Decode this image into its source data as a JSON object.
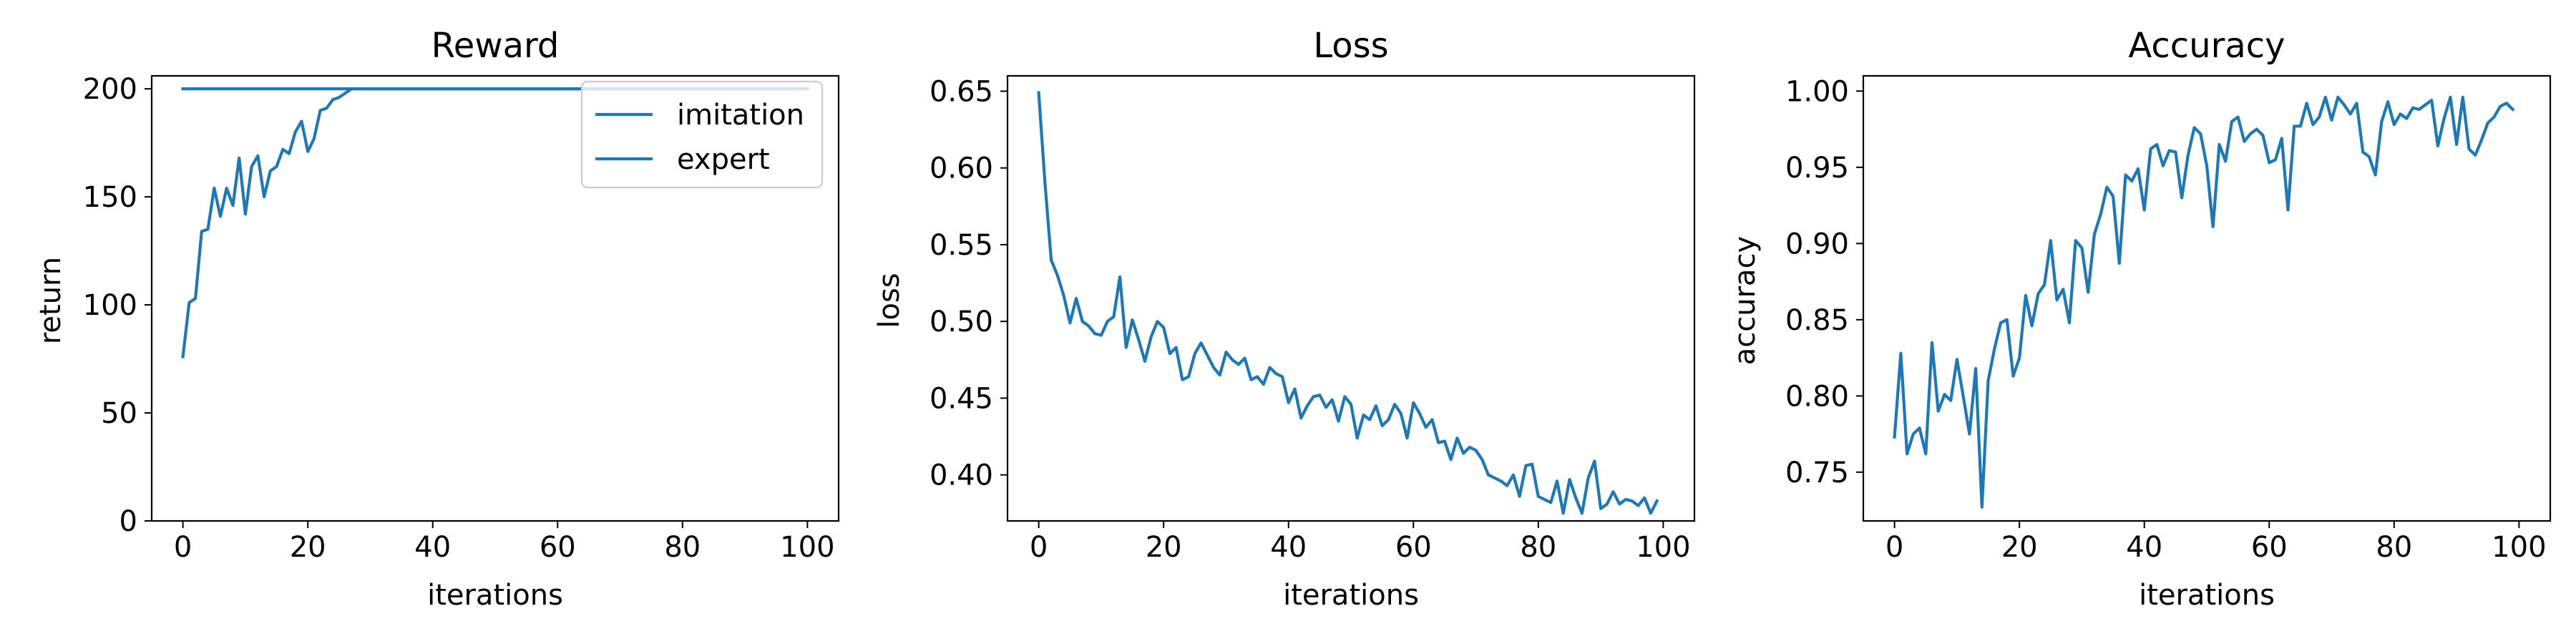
{
  "colors": {
    "line": "#1f77b4",
    "axes": "#000000",
    "legend_border": "#cccccc"
  },
  "chart_data": [
    {
      "type": "line",
      "title": "Reward",
      "xlabel": "iterations",
      "ylabel": "return",
      "xlim": [
        -5,
        105
      ],
      "ylim": [
        0,
        206
      ],
      "xticks": [
        0,
        20,
        40,
        60,
        80,
        100
      ],
      "xtick_labels": [
        "0",
        "20",
        "40",
        "60",
        "80",
        "100"
      ],
      "yticks": [
        0,
        50,
        100,
        150,
        200
      ],
      "ytick_labels": [
        "0",
        "50",
        "100",
        "150",
        "200"
      ],
      "legend": {
        "position": "top-right",
        "entries": [
          "imitation",
          "expert"
        ]
      },
      "grid": false,
      "series": [
        {
          "name": "imitation",
          "x": [
            0,
            1,
            2,
            3,
            4,
            5,
            6,
            7,
            8,
            9,
            10,
            11,
            12,
            13,
            14,
            15,
            16,
            17,
            18,
            19,
            20,
            21,
            22,
            23,
            24,
            25,
            26,
            27,
            28,
            30,
            40,
            50,
            60,
            70,
            80,
            90,
            100
          ],
          "values": [
            76,
            101,
            103,
            134,
            135,
            154,
            141,
            154,
            146,
            168,
            142,
            164,
            169,
            150,
            162,
            164,
            172,
            170,
            180,
            185,
            171,
            177,
            190,
            191,
            195,
            196,
            198,
            200,
            200,
            200,
            200,
            200,
            200,
            200,
            200,
            200,
            200
          ]
        },
        {
          "name": "expert",
          "x": [
            0,
            100
          ],
          "values": [
            200,
            200
          ]
        }
      ]
    },
    {
      "type": "line",
      "title": "Loss",
      "xlabel": "iterations",
      "ylabel": "loss",
      "xlim": [
        -5,
        105
      ],
      "ylim": [
        0.37,
        0.66
      ],
      "xticks": [
        0,
        20,
        40,
        60,
        80,
        100
      ],
      "xtick_labels": [
        "0",
        "20",
        "40",
        "60",
        "80",
        "100"
      ],
      "yticks": [
        0.4,
        0.45,
        0.5,
        0.55,
        0.6,
        0.65
      ],
      "ytick_labels": [
        "0.40",
        "0.45",
        "0.50",
        "0.55",
        "0.60",
        "0.65"
      ],
      "grid": false,
      "series": [
        {
          "x": [
            0,
            1,
            2,
            3,
            4,
            5,
            6,
            7,
            8,
            9,
            10,
            11,
            12,
            13,
            14,
            15,
            16,
            17,
            18,
            19,
            20,
            21,
            22,
            23,
            24,
            25,
            26,
            27,
            28,
            29,
            30,
            31,
            32,
            33,
            34,
            35,
            36,
            37,
            38,
            39,
            40,
            41,
            42,
            43,
            44,
            45,
            46,
            47,
            48,
            49,
            50,
            51,
            52,
            53,
            54,
            55,
            56,
            57,
            58,
            59,
            60,
            61,
            62,
            63,
            64,
            65,
            66,
            67,
            68,
            69,
            70,
            71,
            72,
            73,
            74,
            75,
            76,
            77,
            78,
            79,
            80,
            81,
            82,
            83,
            84,
            85,
            86,
            87,
            88,
            89,
            90,
            91,
            92,
            93,
            94,
            95,
            96,
            97,
            98,
            99
          ],
          "values": [
            0.649,
            0.59,
            0.54,
            0.53,
            0.517,
            0.499,
            0.515,
            0.5,
            0.497,
            0.492,
            0.491,
            0.5,
            0.503,
            0.529,
            0.483,
            0.501,
            0.488,
            0.474,
            0.49,
            0.5,
            0.496,
            0.479,
            0.483,
            0.462,
            0.464,
            0.479,
            0.486,
            0.478,
            0.47,
            0.465,
            0.48,
            0.475,
            0.472,
            0.476,
            0.462,
            0.464,
            0.459,
            0.47,
            0.466,
            0.464,
            0.447,
            0.456,
            0.437,
            0.445,
            0.451,
            0.452,
            0.444,
            0.449,
            0.435,
            0.451,
            0.446,
            0.424,
            0.439,
            0.436,
            0.445,
            0.432,
            0.436,
            0.446,
            0.44,
            0.424,
            0.447,
            0.44,
            0.431,
            0.436,
            0.421,
            0.422,
            0.41,
            0.424,
            0.414,
            0.418,
            0.416,
            0.41,
            0.4,
            0.398,
            0.396,
            0.393,
            0.4,
            0.386,
            0.406,
            0.407,
            0.386,
            0.384,
            0.382,
            0.396,
            0.375,
            0.397,
            0.385,
            0.375,
            0.398,
            0.409,
            0.378,
            0.381,
            0.389,
            0.381,
            0.384,
            0.383,
            0.38,
            0.385,
            0.375,
            0.383
          ]
        }
      ]
    },
    {
      "type": "line",
      "title": "Accuracy",
      "xlabel": "iterations",
      "ylabel": "accuracy",
      "xlim": [
        -5,
        105
      ],
      "ylim": [
        0.718,
        1.01
      ],
      "xticks": [
        0,
        20,
        40,
        60,
        80,
        100
      ],
      "xtick_labels": [
        "0",
        "20",
        "40",
        "60",
        "80",
        "100"
      ],
      "yticks": [
        0.75,
        0.8,
        0.85,
        0.9,
        0.95,
        1.0
      ],
      "ytick_labels": [
        "0.75",
        "0.80",
        "0.85",
        "0.90",
        "0.95",
        "1.00"
      ],
      "grid": false,
      "series": [
        {
          "x": [
            0,
            1,
            2,
            3,
            4,
            5,
            6,
            7,
            8,
            9,
            10,
            11,
            12,
            13,
            14,
            15,
            16,
            17,
            18,
            19,
            20,
            21,
            22,
            23,
            24,
            25,
            26,
            27,
            28,
            29,
            30,
            31,
            32,
            33,
            34,
            35,
            36,
            37,
            38,
            39,
            40,
            41,
            42,
            43,
            44,
            45,
            46,
            47,
            48,
            49,
            50,
            51,
            52,
            53,
            54,
            55,
            56,
            57,
            58,
            59,
            60,
            61,
            62,
            63,
            64,
            65,
            66,
            67,
            68,
            69,
            70,
            71,
            72,
            73,
            74,
            75,
            76,
            77,
            78,
            79,
            80,
            81,
            82,
            83,
            84,
            85,
            86,
            87,
            88,
            89,
            90,
            91,
            92,
            93,
            94,
            95,
            96,
            97,
            98,
            99
          ],
          "values": [
            0.773,
            0.828,
            0.762,
            0.775,
            0.779,
            0.762,
            0.835,
            0.79,
            0.801,
            0.797,
            0.824,
            0.8,
            0.775,
            0.818,
            0.727,
            0.81,
            0.831,
            0.848,
            0.85,
            0.813,
            0.825,
            0.866,
            0.846,
            0.867,
            0.873,
            0.902,
            0.863,
            0.87,
            0.848,
            0.902,
            0.897,
            0.868,
            0.906,
            0.919,
            0.937,
            0.931,
            0.887,
            0.945,
            0.941,
            0.949,
            0.922,
            0.962,
            0.965,
            0.951,
            0.961,
            0.96,
            0.93,
            0.958,
            0.976,
            0.972,
            0.951,
            0.911,
            0.965,
            0.954,
            0.98,
            0.983,
            0.967,
            0.972,
            0.975,
            0.971,
            0.953,
            0.955,
            0.969,
            0.922,
            0.977,
            0.977,
            0.992,
            0.978,
            0.983,
            0.996,
            0.981,
            0.996,
            0.991,
            0.985,
            0.992,
            0.96,
            0.957,
            0.945,
            0.98,
            0.993,
            0.978,
            0.985,
            0.982,
            0.989,
            0.988,
            0.991,
            0.994,
            0.964,
            0.982,
            0.996,
            0.965,
            0.996,
            0.962,
            0.958,
            0.968,
            0.979,
            0.983,
            0.99,
            0.992,
            0.988
          ]
        }
      ]
    }
  ]
}
